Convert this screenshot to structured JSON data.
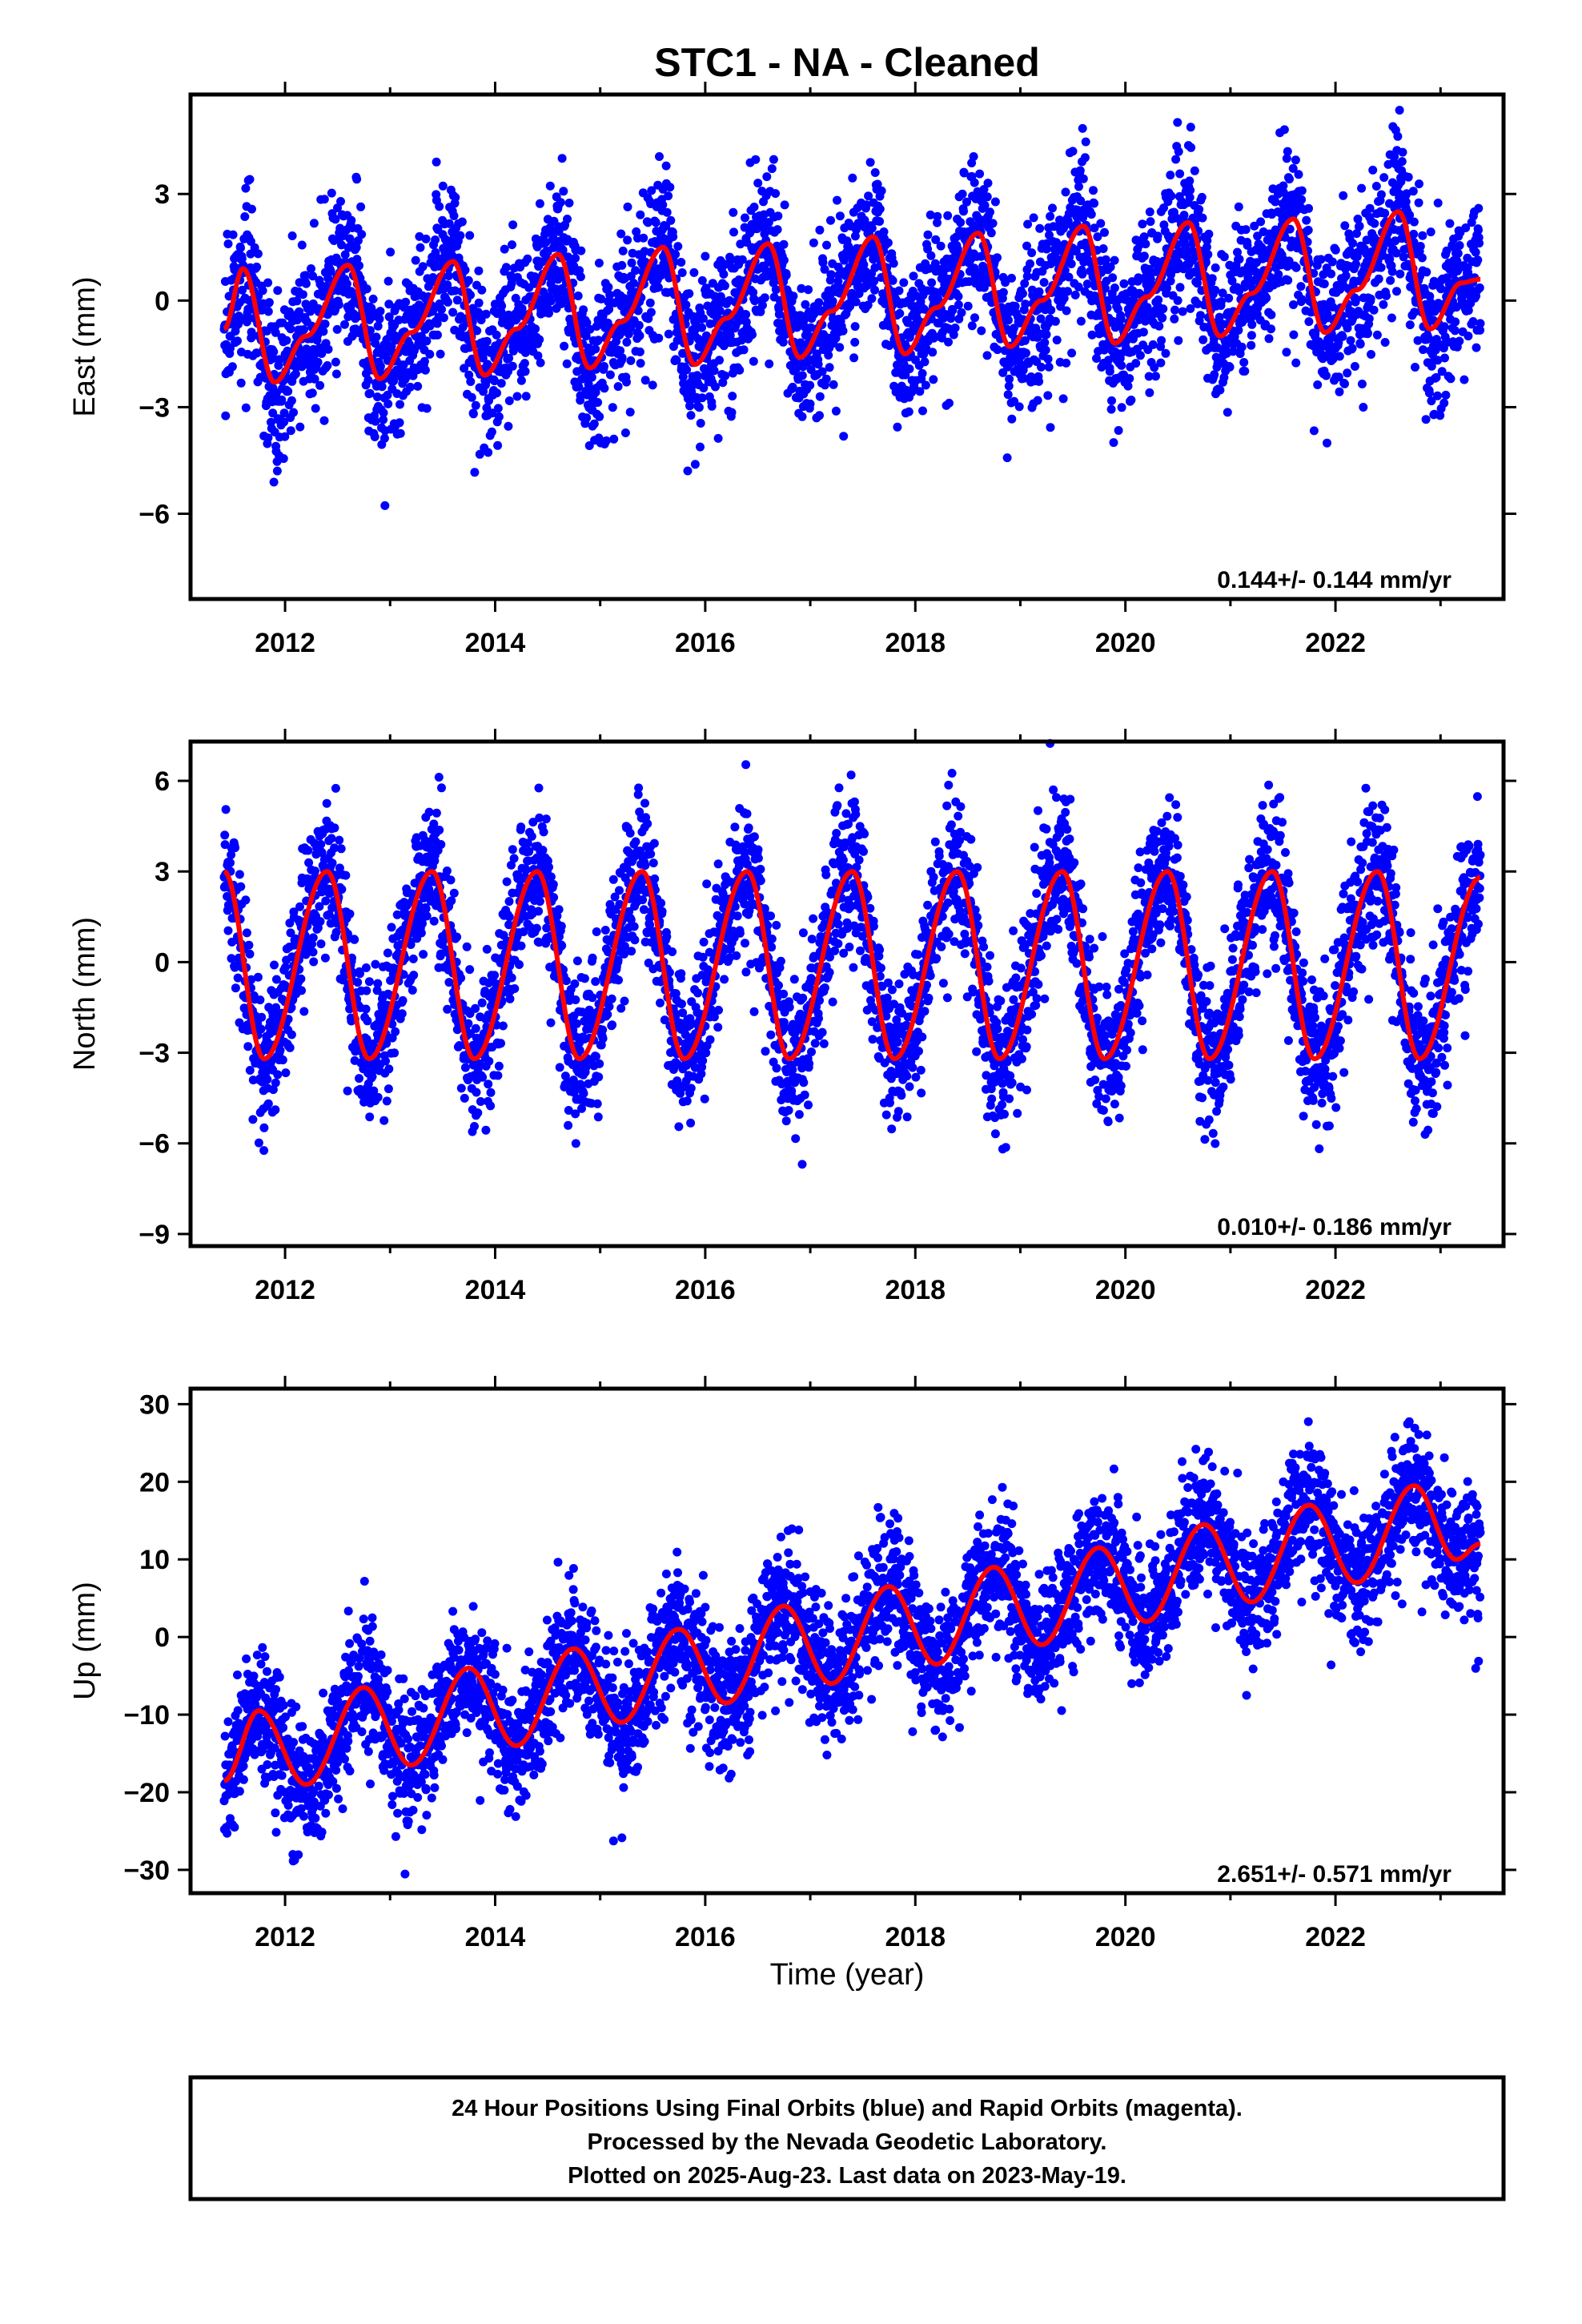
{
  "page": {
    "title": "STC1  - NA - Cleaned"
  },
  "colors": {
    "data": "#0000ff",
    "model": "#ff0000",
    "frame": "#000000"
  },
  "footer": {
    "line1": "24 Hour Positions Using Final Orbits (blue) and Rapid Orbits (magenta).",
    "line2": "Processed by the Nevada Geodetic Laboratory.",
    "line3": "Plotted on 2025-Aug-23. Last data on 2023-May-19."
  },
  "chart_data": [
    {
      "type": "scatter",
      "component": "east",
      "ylabel": "East (mm)",
      "xlabel": "",
      "xlim": [
        2011.1,
        2023.6
      ],
      "ylim": [
        -8.4,
        5.8
      ],
      "xticks": [
        "2012",
        "2014",
        "2016",
        "2018",
        "2020",
        "2022"
      ],
      "yticks": [
        "3",
        "0",
        "−3",
        "−6"
      ],
      "rate_label": "0.144+/- 0.144 mm/yr",
      "series": [
        {
          "name": "",
          "kind": "daily positions",
          "x_range": [
            2011.42,
            2023.38
          ],
          "scatter_sd": 1.1
        },
        {
          "name": "",
          "kind": "model fit",
          "x": [
            2011.42,
            2011.6,
            2011.9,
            2012.2,
            2012.6,
            2012.9,
            2013.2,
            2013.6,
            2013.9,
            2014.2,
            2014.6,
            2014.9,
            2015.2,
            2015.6,
            2015.9,
            2016.2,
            2016.6,
            2016.9,
            2017.2,
            2017.6,
            2017.9,
            2018.2,
            2018.6,
            2018.9,
            2019.2,
            2019.6,
            2019.9,
            2020.2,
            2020.6,
            2020.9,
            2021.2,
            2021.6,
            2021.9,
            2022.2,
            2022.6,
            2022.9,
            2023.2,
            2023.38
          ],
          "y": [
            -0.8,
            0.9,
            -2.3,
            -1.0,
            1.0,
            -2.2,
            -0.9,
            1.1,
            -2.1,
            -0.8,
            1.3,
            -1.9,
            -0.6,
            1.5,
            -1.8,
            -0.5,
            1.6,
            -1.6,
            -0.3,
            1.8,
            -1.5,
            -0.2,
            1.9,
            -1.3,
            0.0,
            2.1,
            -1.2,
            0.1,
            2.2,
            -1.0,
            0.2,
            2.3,
            -0.9,
            0.3,
            2.5,
            -0.8,
            0.5,
            0.6
          ]
        }
      ]
    },
    {
      "type": "scatter",
      "component": "north",
      "ylabel": "North (mm)",
      "xlabel": "",
      "xlim": [
        2011.1,
        2023.6
      ],
      "ylim": [
        -9.4,
        7.3
      ],
      "xticks": [
        "2012",
        "2014",
        "2016",
        "2018",
        "2020",
        "2022"
      ],
      "yticks": [
        "6",
        "3",
        "0",
        "−3",
        "−6",
        "−9"
      ],
      "rate_label": "0.010+/- 0.186 mm/yr",
      "series": [
        {
          "name": "",
          "kind": "daily positions",
          "x_range": [
            2011.42,
            2023.38
          ],
          "scatter_sd": 1.2
        },
        {
          "name": "",
          "kind": "model fit",
          "x": [
            2011.42,
            2011.8,
            2012.4,
            2012.8,
            2013.4,
            2013.8,
            2014.4,
            2014.8,
            2015.4,
            2015.8,
            2016.4,
            2016.8,
            2017.4,
            2017.8,
            2018.4,
            2018.8,
            2019.4,
            2019.8,
            2020.4,
            2020.8,
            2021.4,
            2021.8,
            2022.4,
            2022.8,
            2023.38
          ],
          "y": [
            3.0,
            -3.2,
            3.0,
            -3.2,
            3.0,
            -3.2,
            3.0,
            -3.2,
            3.0,
            -3.2,
            3.0,
            -3.2,
            3.0,
            -3.2,
            3.0,
            -3.2,
            3.0,
            -3.2,
            3.0,
            -3.2,
            3.0,
            -3.2,
            3.0,
            -3.2,
            2.8
          ]
        }
      ]
    },
    {
      "type": "scatter",
      "component": "up",
      "ylabel": "Up (mm)",
      "xlabel": "Time (year)",
      "xlim": [
        2011.1,
        2023.6
      ],
      "ylim": [
        -33,
        32
      ],
      "xticks": [
        "2012",
        "2014",
        "2016",
        "2018",
        "2020",
        "2022"
      ],
      "yticks": [
        "30",
        "20",
        "10",
        "0",
        "−10",
        "−20",
        "−30"
      ],
      "rate_label": "2.651+/- 0.571 mm/yr",
      "series": [
        {
          "name": "",
          "kind": "daily positions",
          "x_range": [
            2011.42,
            2023.38
          ],
          "scatter_sd": 4.2
        },
        {
          "name": "",
          "kind": "model fit",
          "x": [
            2011.42,
            2011.75,
            2012.2,
            2012.75,
            2013.2,
            2013.75,
            2014.2,
            2014.75,
            2015.2,
            2015.75,
            2016.2,
            2016.75,
            2017.2,
            2017.75,
            2018.2,
            2018.75,
            2019.2,
            2019.75,
            2020.2,
            2020.75,
            2021.2,
            2021.75,
            2022.2,
            2022.75,
            2023.15,
            2023.38
          ],
          "y": [
            -18.5,
            -9.5,
            -19.0,
            -6.5,
            -16.5,
            -4.0,
            -14.0,
            -1.5,
            -11.0,
            1.0,
            -8.5,
            4.0,
            -6.0,
            6.5,
            -3.5,
            9.0,
            -1.0,
            11.5,
            2.0,
            14.5,
            4.5,
            17.0,
            7.0,
            19.5,
            10.0,
            12.0
          ]
        }
      ]
    }
  ]
}
